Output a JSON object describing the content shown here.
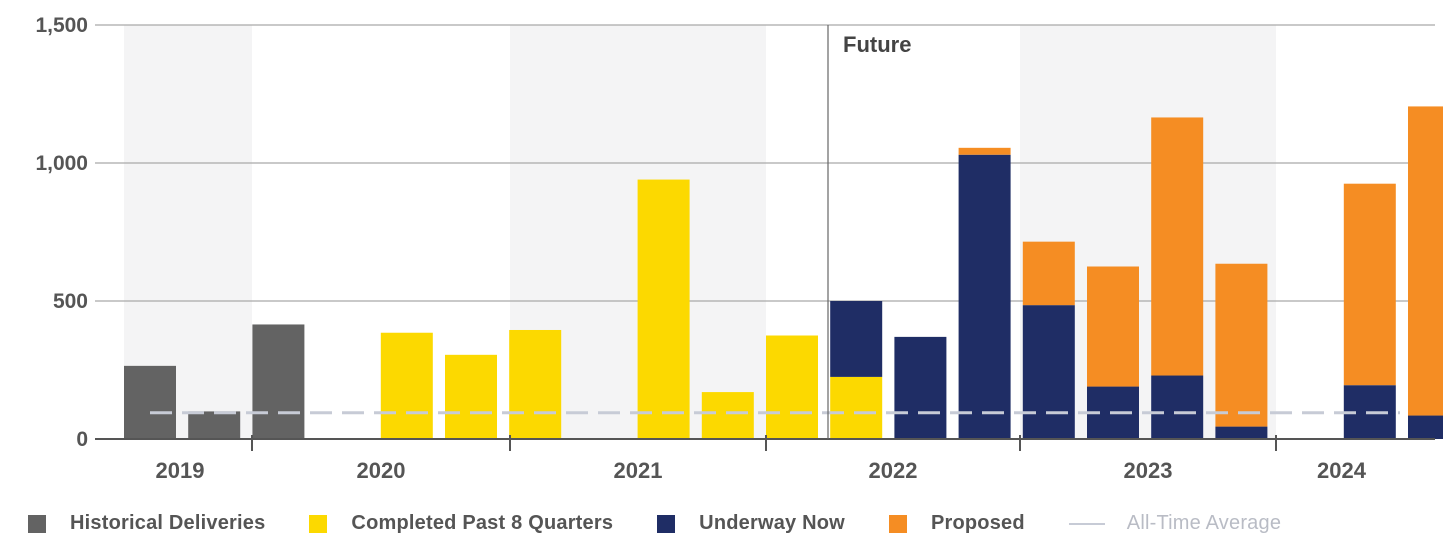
{
  "chart_data": {
    "type": "bar",
    "stacked": true,
    "yticks": [
      "0",
      "500",
      "1,000",
      "1,500"
    ],
    "ylim": [
      0,
      1500
    ],
    "year_labels": [
      "2019",
      "2020",
      "2021",
      "2022",
      "2023",
      "2024"
    ],
    "future_label": "Future",
    "all_time_average": 95,
    "grid": true,
    "legend_position": "bottom",
    "series": [
      {
        "key": "historical",
        "name": "Historical Deliveries",
        "color": "#636363",
        "values": [
          265,
          100,
          415,
          0,
          0,
          0,
          0,
          0,
          0,
          0,
          0,
          0,
          0,
          0,
          0,
          0,
          0,
          0,
          0,
          0,
          0,
          0
        ]
      },
      {
        "key": "completed",
        "name": "Completed Past 8 Quarters",
        "color": "#fcd900",
        "values": [
          0,
          0,
          0,
          0,
          385,
          305,
          395,
          0,
          940,
          170,
          375,
          225,
          0,
          0,
          0,
          0,
          0,
          0,
          0,
          0,
          0,
          0
        ]
      },
      {
        "key": "underway",
        "name": "Underway Now",
        "color": "#1f2d65",
        "values": [
          0,
          0,
          0,
          0,
          0,
          0,
          0,
          0,
          0,
          0,
          0,
          275,
          370,
          1030,
          485,
          190,
          230,
          45,
          0,
          195,
          85,
          0
        ]
      },
      {
        "key": "proposed",
        "name": "Proposed",
        "color": "#f58d23",
        "values": [
          0,
          0,
          0,
          0,
          0,
          0,
          0,
          0,
          0,
          0,
          0,
          0,
          0,
          25,
          230,
          435,
          935,
          590,
          0,
          730,
          1120,
          0
        ]
      }
    ],
    "legend_extra": {
      "name": "All-Time Average",
      "color": "#c7cbd6"
    }
  }
}
